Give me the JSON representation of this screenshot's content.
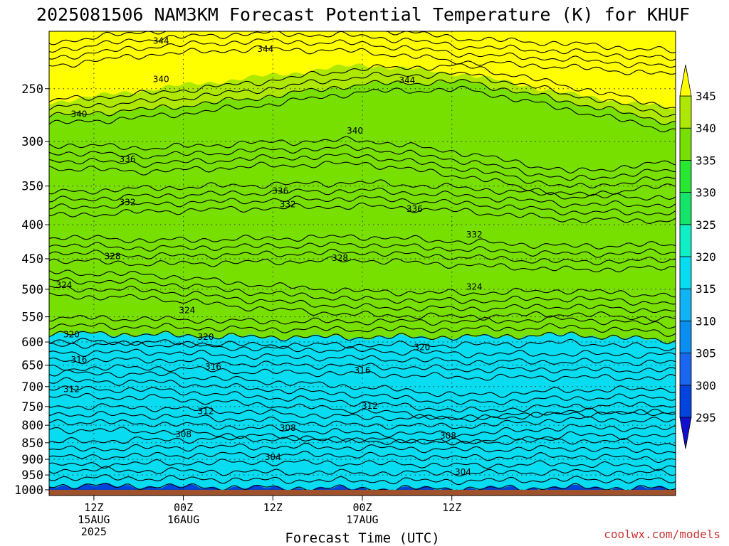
{
  "chart_data": {
    "type": "heatmap",
    "title": "2025081506 NAM3KM Forecast Potential Temperature (K) for KHUF",
    "xlabel": "Forecast Time (UTC)",
    "ylabel": "",
    "y_scale": "log-pressure",
    "ylim_hpa": [
      1020,
      205
    ],
    "xlim_hours": [
      6,
      90
    ],
    "y_ticks": [
      250,
      300,
      350,
      400,
      450,
      500,
      550,
      600,
      650,
      700,
      750,
      800,
      850,
      900,
      950,
      1000
    ],
    "x_ticks": [
      {
        "hour": 12,
        "lines": [
          "12Z",
          "15AUG",
          "2025"
        ]
      },
      {
        "hour": 24,
        "lines": [
          "00Z",
          "16AUG"
        ]
      },
      {
        "hour": 36,
        "lines": [
          "12Z"
        ]
      },
      {
        "hour": 48,
        "lines": [
          "00Z",
          "17AUG"
        ]
      },
      {
        "hour": 60,
        "lines": [
          "12Z"
        ]
      }
    ],
    "grid": true,
    "colorbar": {
      "levels": [
        295,
        300,
        305,
        310,
        315,
        320,
        325,
        330,
        335,
        340,
        345
      ],
      "colors": [
        "#1010cc",
        "#0044dd",
        "#1a66ee",
        "#0a8ef0",
        "#10b4f4",
        "#08dcf0",
        "#10eec4",
        "#14e46a",
        "#28e632",
        "#78e000",
        "#aee800",
        "#e6f000",
        "#ffff00"
      ]
    },
    "contour_labels": [
      {
        "value": "344",
        "hour": 21,
        "p": 212
      },
      {
        "value": "344",
        "hour": 35,
        "p": 218
      },
      {
        "value": "344",
        "hour": 54,
        "p": 243
      },
      {
        "value": "340",
        "hour": 21,
        "p": 242
      },
      {
        "value": "340",
        "hour": 10,
        "p": 273
      },
      {
        "value": "340",
        "hour": 47,
        "p": 289
      },
      {
        "value": "336",
        "hour": 16.5,
        "p": 319
      },
      {
        "value": "336",
        "hour": 37,
        "p": 356
      },
      {
        "value": "336",
        "hour": 55,
        "p": 379
      },
      {
        "value": "332",
        "hour": 16.5,
        "p": 370
      },
      {
        "value": "332",
        "hour": 38,
        "p": 373
      },
      {
        "value": "332",
        "hour": 63,
        "p": 414
      },
      {
        "value": "328",
        "hour": 14.5,
        "p": 446
      },
      {
        "value": "328",
        "hour": 45,
        "p": 449
      },
      {
        "value": "324",
        "hour": 8,
        "p": 493
      },
      {
        "value": "324",
        "hour": 24.5,
        "p": 538
      },
      {
        "value": "324",
        "hour": 63,
        "p": 496
      },
      {
        "value": "320",
        "hour": 9,
        "p": 585
      },
      {
        "value": "320",
        "hour": 27,
        "p": 590
      },
      {
        "value": "320",
        "hour": 56,
        "p": 611
      },
      {
        "value": "316",
        "hour": 10,
        "p": 638
      },
      {
        "value": "316",
        "hour": 28,
        "p": 654
      },
      {
        "value": "316",
        "hour": 48,
        "p": 662
      },
      {
        "value": "312",
        "hour": 9,
        "p": 706
      },
      {
        "value": "312",
        "hour": 27,
        "p": 762
      },
      {
        "value": "312",
        "hour": 49,
        "p": 748
      },
      {
        "value": "308",
        "hour": 24,
        "p": 826
      },
      {
        "value": "308",
        "hour": 38,
        "p": 808
      },
      {
        "value": "308",
        "hour": 59.5,
        "p": 830
      },
      {
        "value": "304",
        "hour": 36,
        "p": 893
      },
      {
        "value": "304",
        "hour": 61.5,
        "p": 940
      }
    ],
    "series": [
      {
        "value": 345,
        "p": [
          262,
          250,
          240,
          230,
          238,
          255,
          268
        ]
      },
      {
        "value": 344,
        "p": [
          225,
          216,
          212,
          214,
          222,
          226,
          232,
          244,
          248,
          252,
          252
        ]
      },
      {
        "value": 340,
        "p": [
          275,
          268,
          258,
          246,
          244,
          262,
          282,
          290,
          300,
          300,
          295
        ]
      },
      {
        "value": 336,
        "p": [
          320,
          324,
          318,
          315,
          330,
          352,
          340,
          372,
          392,
          360,
          345
        ]
      },
      {
        "value": 332,
        "p": [
          378,
          372,
          368,
          365,
          372,
          383,
          384,
          398,
          412,
          395,
          392
        ]
      },
      {
        "value": 328,
        "p": [
          440,
          446,
          443,
          440,
          448,
          455,
          452,
          468,
          470,
          462,
          458
        ]
      },
      {
        "value": 324,
        "p": [
          498,
          502,
          520,
          532,
          535,
          530,
          540,
          520,
          505,
          500,
          505
        ]
      },
      {
        "value": 320,
        "p": [
          582,
          585,
          590,
          590,
          590,
          585,
          598,
          610,
          612,
          595,
          580
        ]
      },
      {
        "value": 316,
        "p": [
          640,
          638,
          648,
          652,
          660,
          660,
          662,
          668,
          668,
          660,
          648
        ]
      },
      {
        "value": 312,
        "p": [
          705,
          708,
          725,
          740,
          762,
          748,
          745,
          745,
          752,
          740,
          728
        ]
      },
      {
        "value": 308,
        "p": [
          790,
          795,
          808,
          822,
          825,
          805,
          810,
          815,
          828,
          815,
          800
        ]
      },
      {
        "value": 304,
        "p": [
          895,
          888,
          885,
          888,
          895,
          890,
          900,
          915,
          925,
          912,
          905
        ]
      },
      {
        "value": 300,
        "p": [
          985,
          988,
          993,
          996,
          996,
          992,
          996,
          998,
          1000,
          992,
          990
        ]
      }
    ],
    "ground_fill": "#a0522d",
    "credit": "coolwx.com/models"
  }
}
